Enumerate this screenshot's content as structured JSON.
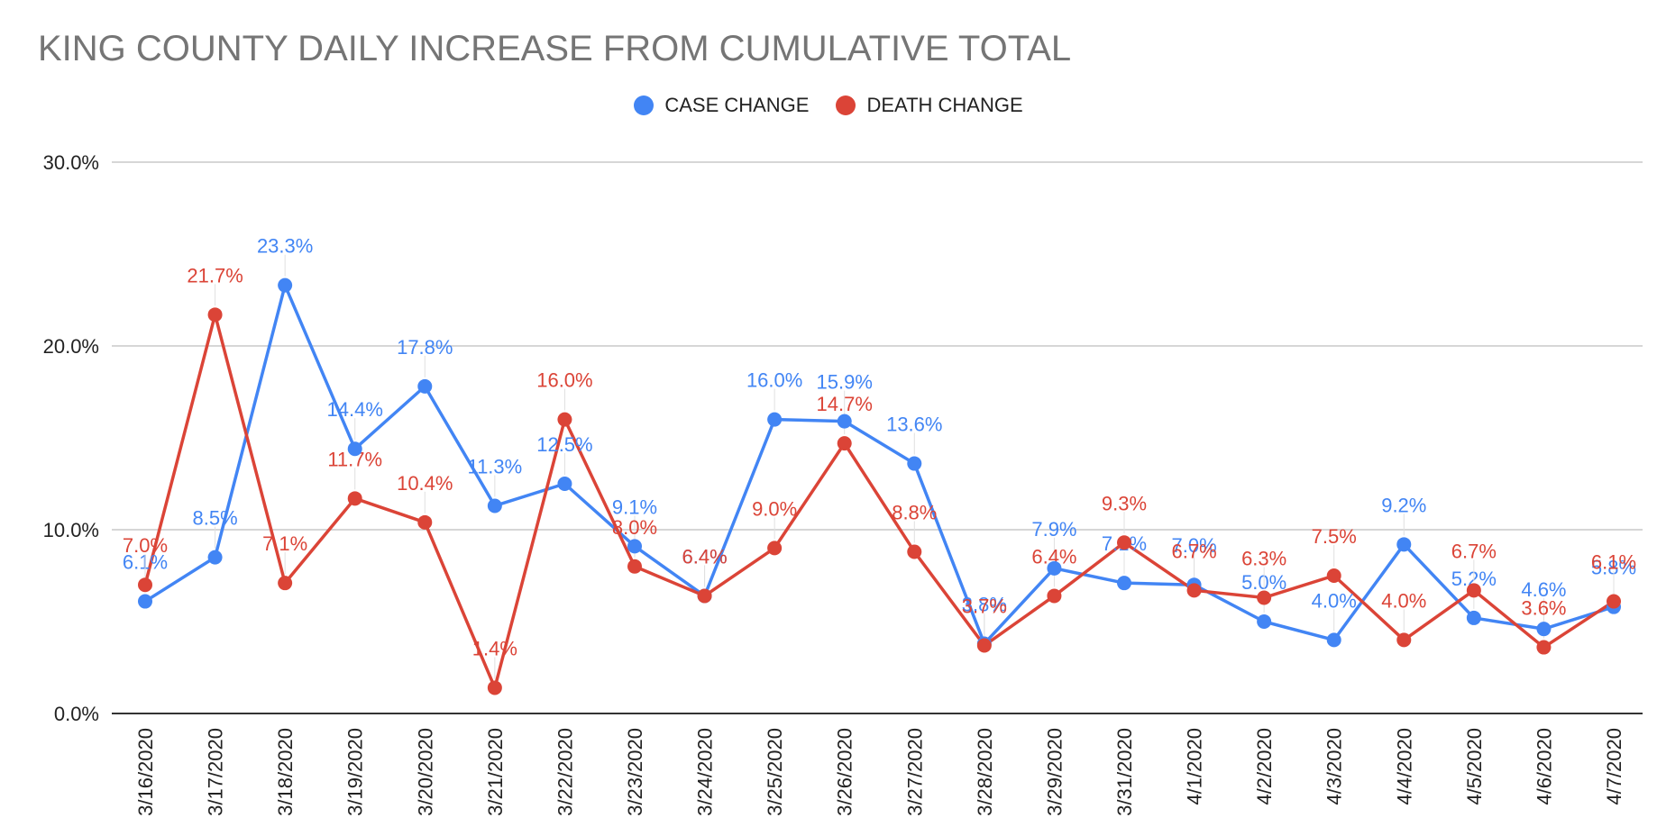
{
  "chart_data": {
    "type": "line",
    "title": "KING COUNTY DAILY INCREASE FROM CUMULATIVE TOTAL",
    "xlabel": "",
    "ylabel": "",
    "ylim": [
      0,
      30
    ],
    "yticks": [
      "0.0%",
      "10.0%",
      "20.0%",
      "30.0%"
    ],
    "ytick_values": [
      0,
      10,
      20,
      30
    ],
    "grid": true,
    "legend_position": "top-center",
    "categories": [
      "3/16/2020",
      "3/17/2020",
      "3/18/2020",
      "3/19/2020",
      "3/20/2020",
      "3/21/2020",
      "3/22/2020",
      "3/23/2020",
      "3/24/2020",
      "3/25/2020",
      "3/26/2020",
      "3/27/2020",
      "3/28/2020",
      "3/29/2020",
      "3/31/2020",
      "4/1/2020",
      "4/2/2020",
      "4/3/2020",
      "4/4/2020",
      "4/5/2020",
      "4/6/2020",
      "4/7/2020"
    ],
    "series": [
      {
        "name": "CASE CHANGE",
        "color": "#4285F4",
        "values": [
          6.1,
          8.5,
          23.3,
          14.4,
          17.8,
          11.3,
          12.5,
          9.1,
          6.4,
          16.0,
          15.9,
          13.6,
          3.8,
          7.9,
          7.1,
          7.0,
          5.0,
          4.0,
          9.2,
          5.2,
          4.6,
          5.8
        ],
        "labels": [
          "6.1%",
          "8.5%",
          "23.3%",
          "14.4%",
          "17.8%",
          "11.3%",
          "12.5%",
          "9.1%",
          "6.4%",
          "16.0%",
          "15.9%",
          "13.6%",
          "3.8%",
          "7.9%",
          "7.1%",
          "7.0%",
          "5.0%",
          "4.0%",
          "9.2%",
          "5.2%",
          "4.6%",
          "5.8%"
        ]
      },
      {
        "name": "DEATH CHANGE",
        "color": "#DB4437",
        "values": [
          7.0,
          21.7,
          7.1,
          11.7,
          10.4,
          1.4,
          16.0,
          8.0,
          6.4,
          9.0,
          14.7,
          8.8,
          3.7,
          6.4,
          9.3,
          6.7,
          6.3,
          7.5,
          4.0,
          6.7,
          3.6,
          6.1
        ],
        "labels": [
          "7.0%",
          "21.7%",
          "7.1%",
          "11.7%",
          "10.4%",
          "1.4%",
          "16.0%",
          "8.0%",
          "6.4%",
          "9.0%",
          "14.7%",
          "8.8%",
          "3.7%",
          "6.4%",
          "9.3%",
          "6.7%",
          "6.3%",
          "7.5%",
          "4.0%",
          "6.7%",
          "3.6%",
          "6.1%"
        ]
      }
    ]
  }
}
